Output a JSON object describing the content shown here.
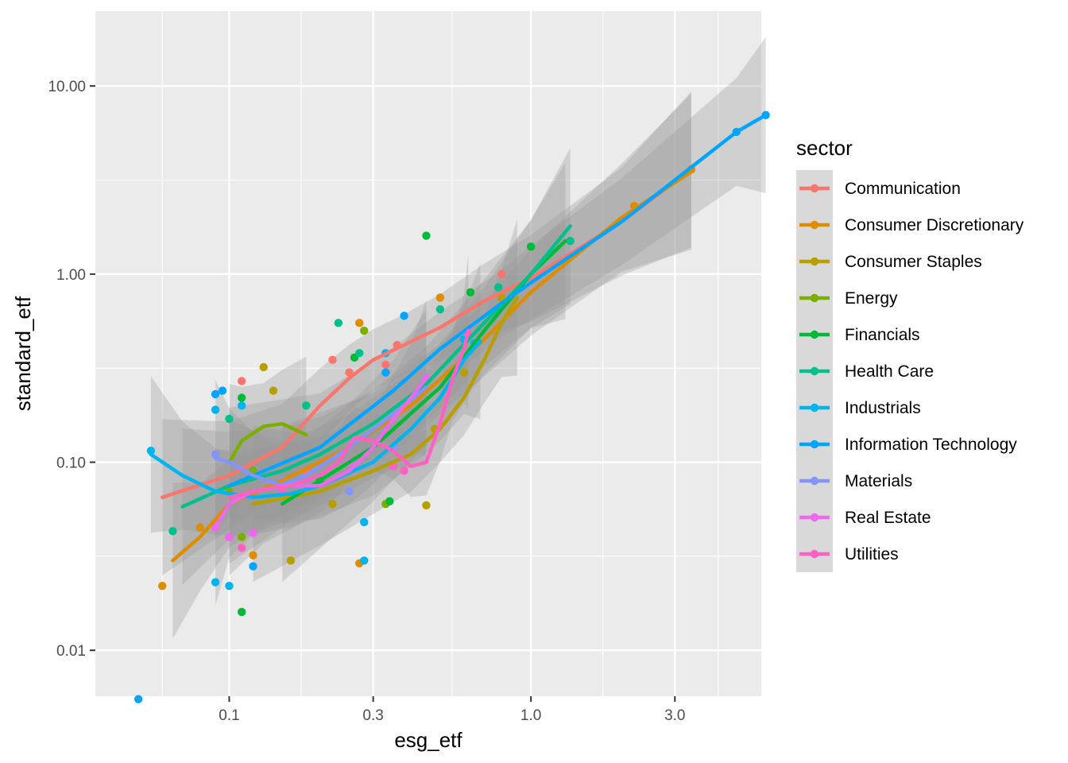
{
  "chart_data": {
    "type": "scatter",
    "xlabel": "esg_etf",
    "ylabel": "standard_etf",
    "x_scale": "log10",
    "y_scale": "log10",
    "x_ticks": [
      {
        "value": 0.1,
        "label": "0.1"
      },
      {
        "value": 0.3,
        "label": "0.3"
      },
      {
        "value": 1.0,
        "label": "1.0"
      },
      {
        "value": 3.0,
        "label": "3.0"
      }
    ],
    "y_ticks": [
      {
        "value": 0.01,
        "label": "0.01"
      },
      {
        "value": 0.1,
        "label": "0.10"
      },
      {
        "value": 1.0,
        "label": "1.00"
      },
      {
        "value": 10.0,
        "label": "10.00"
      }
    ],
    "xlim": [
      0.036,
      5.8
    ],
    "ylim": [
      0.0057,
      25.0
    ],
    "grid": true,
    "panel_background": "#ebebeb",
    "legend": {
      "title": "sector",
      "placement": "right",
      "background": "#d9d9d9"
    },
    "smoother": "loess with grey confidence band",
    "series": [
      {
        "name": "Communication",
        "color": "#F8766D",
        "points": [
          [
            0.11,
            0.27
          ],
          [
            0.18,
            0.09
          ],
          [
            0.22,
            0.35
          ],
          [
            0.25,
            0.3
          ],
          [
            0.33,
            0.33
          ],
          [
            0.36,
            0.42
          ],
          [
            0.8,
            1.0
          ],
          [
            3.4,
            3.6
          ]
        ],
        "trend": [
          [
            0.06,
            0.065
          ],
          [
            0.1,
            0.085
          ],
          [
            0.15,
            0.12
          ],
          [
            0.2,
            0.2
          ],
          [
            0.25,
            0.28
          ],
          [
            0.3,
            0.35
          ],
          [
            0.38,
            0.42
          ],
          [
            0.5,
            0.52
          ],
          [
            0.7,
            0.72
          ],
          [
            1.0,
            0.95
          ],
          [
            2.0,
            1.9
          ],
          [
            3.4,
            3.6
          ]
        ]
      },
      {
        "name": "Consumer Discretionary",
        "color": "#DE8C00",
        "points": [
          [
            0.06,
            0.022
          ],
          [
            0.08,
            0.045
          ],
          [
            0.12,
            0.032
          ],
          [
            0.27,
            0.029
          ],
          [
            0.27,
            0.55
          ],
          [
            0.5,
            0.75
          ],
          [
            2.2,
            2.3
          ],
          [
            3.4,
            3.6
          ]
        ],
        "trend": [
          [
            0.065,
            0.03
          ],
          [
            0.08,
            0.04
          ],
          [
            0.1,
            0.06
          ],
          [
            0.15,
            0.08
          ],
          [
            0.25,
            0.12
          ],
          [
            0.4,
            0.2
          ],
          [
            0.7,
            0.45
          ],
          [
            1.0,
            0.8
          ],
          [
            2.0,
            2.0
          ],
          [
            3.4,
            3.5
          ]
        ]
      },
      {
        "name": "Consumer Staples",
        "color": "#B79F00",
        "points": [
          [
            0.13,
            0.32
          ],
          [
            0.14,
            0.24
          ],
          [
            0.16,
            0.03
          ],
          [
            0.22,
            0.06
          ],
          [
            0.45,
            0.059
          ],
          [
            0.48,
            0.15
          ],
          [
            0.6,
            0.3
          ],
          [
            0.8,
            0.75
          ]
        ],
        "trend": [
          [
            0.12,
            0.06
          ],
          [
            0.2,
            0.07
          ],
          [
            0.3,
            0.09
          ],
          [
            0.4,
            0.11
          ],
          [
            0.5,
            0.15
          ],
          [
            0.6,
            0.22
          ],
          [
            0.7,
            0.35
          ],
          [
            0.8,
            0.55
          ],
          [
            0.9,
            0.75
          ]
        ]
      },
      {
        "name": "Energy",
        "color": "#7CAE00",
        "points": [
          [
            0.1,
            0.07
          ],
          [
            0.11,
            0.04
          ],
          [
            0.12,
            0.09
          ],
          [
            0.28,
            0.5
          ],
          [
            0.33,
            0.06
          ]
        ],
        "trend": [
          [
            0.1,
            0.1
          ],
          [
            0.11,
            0.13
          ],
          [
            0.13,
            0.155
          ],
          [
            0.15,
            0.16
          ],
          [
            0.18,
            0.14
          ]
        ]
      },
      {
        "name": "Financials",
        "color": "#00BA38",
        "points": [
          [
            0.11,
            0.016
          ],
          [
            0.11,
            0.22
          ],
          [
            0.2,
            0.08
          ],
          [
            0.26,
            0.36
          ],
          [
            0.34,
            0.062
          ],
          [
            0.45,
            1.6
          ],
          [
            0.63,
            0.8
          ],
          [
            1.0,
            1.4
          ]
        ],
        "trend": [
          [
            0.15,
            0.06
          ],
          [
            0.3,
            0.12
          ],
          [
            0.5,
            0.25
          ],
          [
            0.7,
            0.5
          ],
          [
            1.0,
            1.0
          ],
          [
            1.3,
            1.5
          ]
        ]
      },
      {
        "name": "Health Care",
        "color": "#00C08B",
        "points": [
          [
            0.065,
            0.043
          ],
          [
            0.1,
            0.17
          ],
          [
            0.18,
            0.2
          ],
          [
            0.23,
            0.55
          ],
          [
            0.27,
            0.38
          ],
          [
            0.5,
            0.65
          ],
          [
            0.78,
            0.85
          ],
          [
            1.35,
            1.5
          ]
        ],
        "trend": [
          [
            0.07,
            0.058
          ],
          [
            0.1,
            0.075
          ],
          [
            0.15,
            0.09
          ],
          [
            0.2,
            0.11
          ],
          [
            0.3,
            0.16
          ],
          [
            0.45,
            0.26
          ],
          [
            0.7,
            0.55
          ],
          [
            1.0,
            1.0
          ],
          [
            1.35,
            1.8
          ]
        ]
      },
      {
        "name": "Industrials",
        "color": "#00B4EF",
        "points": [
          [
            0.055,
            0.115
          ],
          [
            0.09,
            0.19
          ],
          [
            0.11,
            0.2
          ],
          [
            0.09,
            0.023
          ],
          [
            0.1,
            0.022
          ],
          [
            0.28,
            0.048
          ],
          [
            0.28,
            0.03
          ],
          [
            0.33,
            0.38
          ],
          [
            0.6,
            0.45
          ],
          [
            0.65,
            0.43
          ]
        ],
        "trend": [
          [
            0.055,
            0.11
          ],
          [
            0.07,
            0.085
          ],
          [
            0.09,
            0.07
          ],
          [
            0.12,
            0.065
          ],
          [
            0.16,
            0.068
          ],
          [
            0.2,
            0.075
          ],
          [
            0.3,
            0.1
          ],
          [
            0.4,
            0.15
          ],
          [
            0.5,
            0.22
          ],
          [
            0.6,
            0.35
          ],
          [
            0.68,
            0.44
          ]
        ]
      },
      {
        "name": "Information Technology",
        "color": "#00A5FF",
        "points": [
          [
            0.05,
            0.0055
          ],
          [
            0.09,
            0.23
          ],
          [
            0.095,
            0.24
          ],
          [
            0.12,
            0.028
          ],
          [
            0.33,
            0.3
          ],
          [
            0.38,
            0.6
          ],
          [
            4.8,
            5.7
          ],
          [
            6.0,
            7.0
          ]
        ],
        "trend": [
          [
            0.1,
            0.075
          ],
          [
            0.2,
            0.12
          ],
          [
            0.35,
            0.24
          ],
          [
            0.5,
            0.4
          ],
          [
            0.8,
            0.7
          ],
          [
            1.0,
            0.9
          ],
          [
            2.0,
            1.9
          ],
          [
            4.8,
            5.7
          ],
          [
            6.0,
            7.0
          ]
        ]
      },
      {
        "name": "Materials",
        "color": "#8494FF",
        "points": [
          [
            0.09,
            0.11
          ],
          [
            0.15,
            0.08
          ],
          [
            0.25,
            0.07
          ],
          [
            0.35,
            0.12
          ]
        ],
        "trend": [
          [
            0.09,
            0.105
          ],
          [
            0.1,
            0.1
          ],
          [
            0.12,
            0.085
          ],
          [
            0.15,
            0.075
          ],
          [
            0.18,
            0.085
          ],
          [
            0.25,
            0.12
          ],
          [
            0.35,
            0.18
          ],
          [
            0.45,
            0.25
          ]
        ]
      },
      {
        "name": "Real Estate",
        "color": "#ED68ED",
        "points": [
          [
            0.09,
            0.045
          ],
          [
            0.1,
            0.04
          ],
          [
            0.12,
            0.042
          ],
          [
            0.25,
            0.1
          ],
          [
            0.45,
            0.28
          ]
        ],
        "trend": [
          [
            0.09,
            0.045
          ],
          [
            0.1,
            0.06
          ],
          [
            0.12,
            0.07
          ],
          [
            0.15,
            0.075
          ],
          [
            0.2,
            0.075
          ],
          [
            0.25,
            0.09
          ],
          [
            0.3,
            0.12
          ],
          [
            0.35,
            0.17
          ],
          [
            0.4,
            0.22
          ],
          [
            0.45,
            0.28
          ]
        ]
      },
      {
        "name": "Utilities",
        "color": "#FF61C3",
        "points": [
          [
            0.11,
            0.035
          ],
          [
            0.15,
            0.07
          ],
          [
            0.35,
            0.095
          ],
          [
            0.38,
            0.09
          ],
          [
            0.62,
            0.48
          ]
        ],
        "trend": [
          [
            0.1,
            0.065
          ],
          [
            0.13,
            0.072
          ],
          [
            0.16,
            0.075
          ],
          [
            0.2,
            0.085
          ],
          [
            0.23,
            0.1
          ],
          [
            0.26,
            0.135
          ],
          [
            0.3,
            0.13
          ],
          [
            0.35,
            0.115
          ],
          [
            0.4,
            0.095
          ],
          [
            0.45,
            0.1
          ],
          [
            0.5,
            0.16
          ],
          [
            0.55,
            0.28
          ],
          [
            0.6,
            0.4
          ],
          [
            0.62,
            0.5
          ]
        ]
      }
    ]
  }
}
